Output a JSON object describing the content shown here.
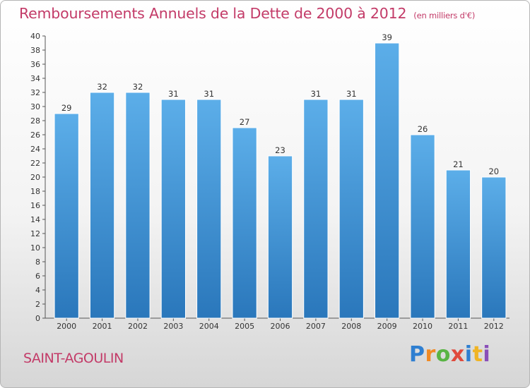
{
  "header": {
    "title": "Remboursements Annuels de la Dette de 2000 à 2012",
    "subtitle": "(en milliers d'€)"
  },
  "footer": {
    "town": "SAINT-AGOULIN",
    "brand_letters": [
      "P",
      "r",
      "o",
      "x",
      "i",
      "t",
      "i"
    ]
  },
  "colors": {
    "title": "#c33b68",
    "bar_top": "#5caee9",
    "bar_bottom": "#2a77bb"
  },
  "chart_data": {
    "type": "bar",
    "categories": [
      "2000",
      "2001",
      "2002",
      "2003",
      "2004",
      "2005",
      "2006",
      "2007",
      "2008",
      "2009",
      "2010",
      "2011",
      "2012"
    ],
    "values": [
      29,
      32,
      32,
      31,
      31,
      27,
      23,
      31,
      31,
      39,
      26,
      21,
      20
    ],
    "title": "Remboursements Annuels de la Dette de 2000 à 2012",
    "subtitle": "(en milliers d'€)",
    "ylim": [
      0,
      40
    ],
    "ytick_step": 2,
    "grid": false,
    "data_labels": true
  }
}
